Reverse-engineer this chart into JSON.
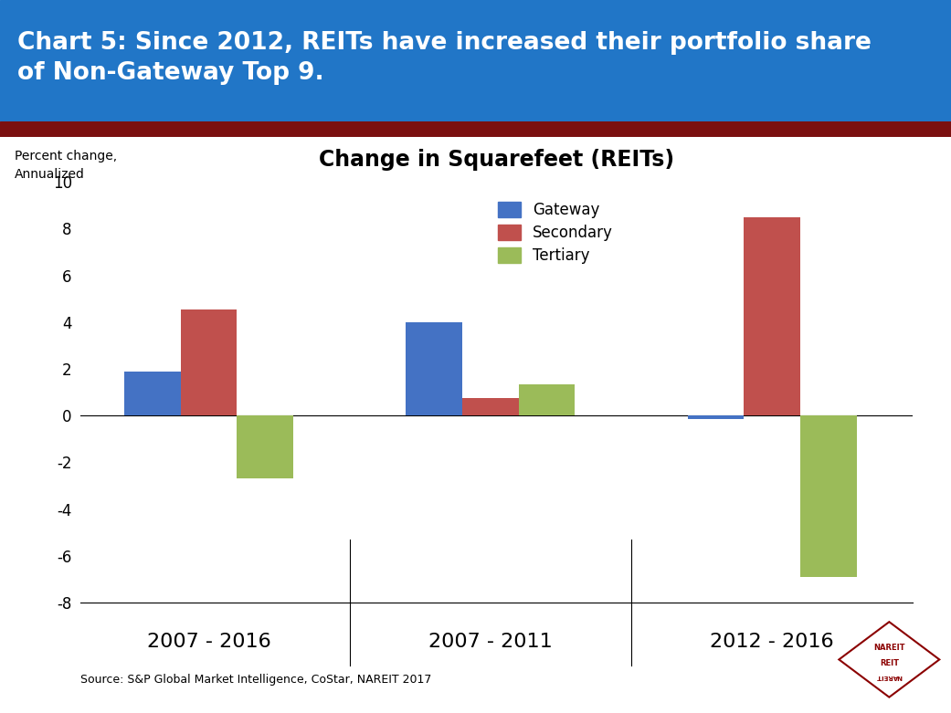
{
  "title": "Change in Squarefeet (REITs)",
  "header_text": "Chart 5: Since 2012, REITs have increased their portfolio share\nof Non-Gateway Top 9.",
  "ylabel_line1": "Percent change,",
  "ylabel_line2": "Annualized",
  "source_text": "Source: S&P Global Market Intelligence, CoStar, NAREIT 2017",
  "groups": [
    "2007 - 2016",
    "2007 - 2011",
    "2012 - 2016"
  ],
  "series": [
    "Gateway",
    "Secondary",
    "Tertiary"
  ],
  "colors": [
    "#4472C4",
    "#C0504D",
    "#9BBB59"
  ],
  "values": [
    [
      1.9,
      4.55,
      -2.7
    ],
    [
      4.0,
      0.75,
      1.35
    ],
    [
      -0.15,
      8.5,
      -6.9
    ]
  ],
  "ylim": [
    -8,
    10
  ],
  "yticks": [
    -8,
    -6,
    -4,
    -2,
    0,
    2,
    4,
    6,
    8,
    10
  ],
  "header_bg_color": "#2176C7",
  "header_stripe_color": "#7B1010",
  "header_text_color": "#FFFFFF",
  "title_fontsize": 17,
  "header_fontsize": 19,
  "bar_width": 0.22,
  "group_positions": [
    0.35,
    1.45,
    2.55
  ]
}
